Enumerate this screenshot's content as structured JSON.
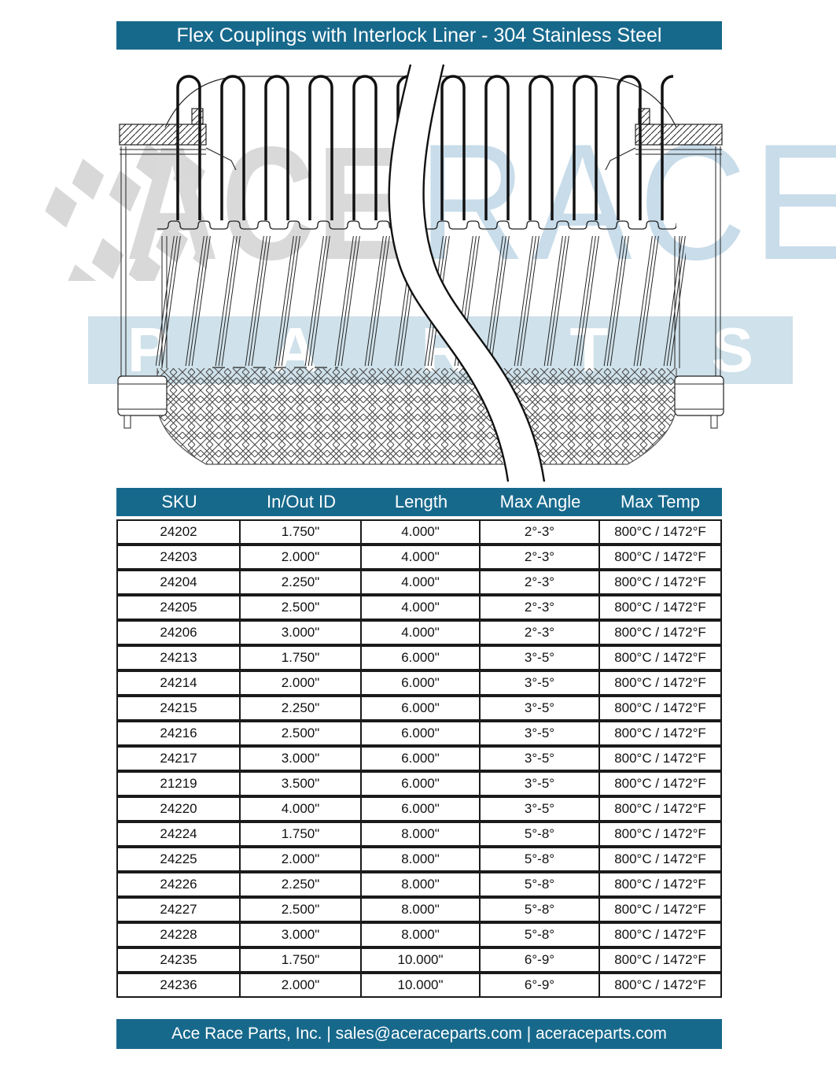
{
  "title_bar": {
    "text": "Flex Couplings with Interlock Liner - 304 Stainless Steel"
  },
  "watermark": {
    "word_left": "ACE",
    "word_right": "RACE",
    "parts_letters": [
      "P",
      "A",
      "R",
      "T",
      "S"
    ],
    "flag_icon": "checkered-flag"
  },
  "diagram": {
    "description": "flex coupling cross-section drawing"
  },
  "colors": {
    "bar_teal": "#17698c",
    "watermark_grey": "#d9d9d9",
    "watermark_blue": "#cfe1ea",
    "line_art": "#222222",
    "table_border": "#1a1a1a"
  },
  "table": {
    "headers": [
      "SKU",
      "In/Out ID",
      "Length",
      "Max Angle",
      "Max Temp"
    ],
    "rows": [
      [
        "24202",
        "1.750\"",
        "4.000\"",
        "2°-3°",
        "800°C / 1472°F"
      ],
      [
        "24203",
        "2.000\"",
        "4.000\"",
        "2°-3°",
        "800°C / 1472°F"
      ],
      [
        "24204",
        "2.250\"",
        "4.000\"",
        "2°-3°",
        "800°C / 1472°F"
      ],
      [
        "24205",
        "2.500\"",
        "4.000\"",
        "2°-3°",
        "800°C / 1472°F"
      ],
      [
        "24206",
        "3.000\"",
        "4.000\"",
        "2°-3°",
        "800°C / 1472°F"
      ],
      [
        "24213",
        "1.750\"",
        "6.000\"",
        "3°-5°",
        "800°C / 1472°F"
      ],
      [
        "24214",
        "2.000\"",
        "6.000\"",
        "3°-5°",
        "800°C / 1472°F"
      ],
      [
        "24215",
        "2.250\"",
        "6.000\"",
        "3°-5°",
        "800°C / 1472°F"
      ],
      [
        "24216",
        "2.500\"",
        "6.000\"",
        "3°-5°",
        "800°C / 1472°F"
      ],
      [
        "24217",
        "3.000\"",
        "6.000\"",
        "3°-5°",
        "800°C / 1472°F"
      ],
      [
        "21219",
        "3.500\"",
        "6.000\"",
        "3°-5°",
        "800°C / 1472°F"
      ],
      [
        "24220",
        "4.000\"",
        "6.000\"",
        "3°-5°",
        "800°C / 1472°F"
      ],
      [
        "24224",
        "1.750\"",
        "8.000\"",
        "5°-8°",
        "800°C / 1472°F"
      ],
      [
        "24225",
        "2.000\"",
        "8.000\"",
        "5°-8°",
        "800°C / 1472°F"
      ],
      [
        "24226",
        "2.250\"",
        "8.000\"",
        "5°-8°",
        "800°C / 1472°F"
      ],
      [
        "24227",
        "2.500\"",
        "8.000\"",
        "5°-8°",
        "800°C / 1472°F"
      ],
      [
        "24228",
        "3.000\"",
        "8.000\"",
        "5°-8°",
        "800°C / 1472°F"
      ],
      [
        "24235",
        "1.750\"",
        "10.000\"",
        "6°-9°",
        "800°C / 1472°F"
      ],
      [
        "24236",
        "2.000\"",
        "10.000\"",
        "6°-9°",
        "800°C / 1472°F"
      ]
    ]
  },
  "footer": {
    "text": "Ace Race Parts, Inc. | sales@aceraceparts.com | aceraceparts.com"
  }
}
